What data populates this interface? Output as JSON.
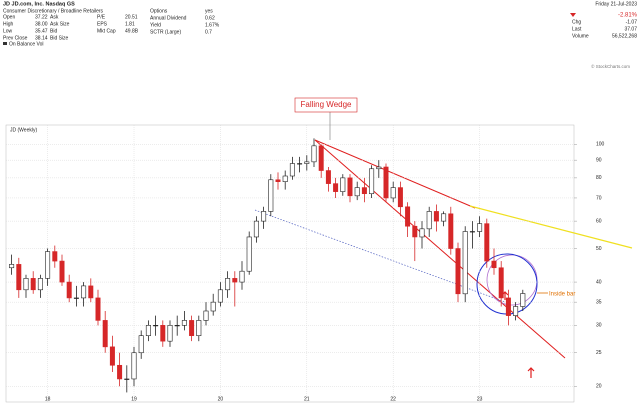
{
  "header": {
    "title": "JD JD.com, Inc. Nasdaq GS",
    "sector": "Consumer Discretionary / Broadline Retailers",
    "columns": [
      [
        [
          "Open",
          "37.22"
        ],
        [
          "High",
          "38.00"
        ],
        [
          "Low",
          "35.47"
        ],
        [
          "Prev Close",
          "38.14"
        ]
      ],
      [
        [
          "P/E",
          "20.51"
        ],
        [
          "EPS",
          "1.81"
        ],
        [
          "Mkt Cap",
          "49.8B"
        ]
      ],
      [
        [
          "Options",
          "yes"
        ],
        [
          "Annual Dividend",
          "0.62"
        ],
        [
          "Yield",
          "1.67%"
        ],
        [
          "SCTR (Large)",
          "0.7"
        ]
      ]
    ],
    "quote_labels": [
      "Ask",
      "Ask Size",
      "Bid",
      "Bid Size"
    ],
    "date": "Friday 21-Jul-2023",
    "change_pct": "-2.81%",
    "right": [
      [
        "Chg",
        "-1.07"
      ],
      [
        "Last",
        "37.07"
      ],
      [
        "Volume",
        "56,522,268"
      ]
    ],
    "legend": "On Balance Vol",
    "watermark": "© StockCharts.com"
  },
  "chart_data": {
    "type": "candlestick",
    "title": "JD (Weekly)",
    "log_scale": true,
    "grid": true,
    "up_color": "#222222",
    "down_color": "#d62728",
    "categories": [
      null,
      null,
      null,
      null,
      null,
      "18",
      null,
      null,
      null,
      null,
      null,
      null,
      null,
      null,
      null,
      null,
      null,
      "19",
      null,
      null,
      null,
      null,
      null,
      null,
      null,
      null,
      null,
      null,
      null,
      "20",
      null,
      null,
      null,
      null,
      null,
      null,
      null,
      null,
      null,
      null,
      null,
      "21",
      null,
      null,
      null,
      null,
      null,
      null,
      null,
      null,
      null,
      null,
      null,
      "22",
      null,
      null,
      null,
      null,
      null,
      null,
      null,
      null,
      null,
      null,
      null,
      "23",
      null,
      null,
      null,
      null,
      null,
      null
    ],
    "open": [
      44,
      45,
      38,
      41,
      38,
      41,
      49,
      46,
      40,
      36,
      36,
      39,
      36,
      31,
      26,
      23,
      21,
      21,
      25,
      28,
      30,
      30,
      27,
      30,
      30,
      31,
      28,
      31,
      33,
      35,
      38,
      41,
      40,
      43,
      54,
      60,
      64,
      79,
      78,
      81,
      88,
      88,
      89,
      99,
      84,
      77,
      73,
      80,
      71,
      75,
      72,
      85,
      86,
      70,
      75,
      66,
      58,
      54,
      57,
      64,
      60,
      63,
      50,
      37,
      56,
      56,
      59,
      46,
      44,
      36,
      32,
      34
    ],
    "high": [
      48,
      47,
      42,
      43,
      42,
      50,
      51,
      48,
      42,
      39,
      40,
      41,
      38,
      33,
      28,
      25,
      23,
      26,
      29,
      31,
      32,
      31,
      31,
      32,
      33,
      32,
      32,
      35,
      37,
      40,
      43,
      43,
      46,
      56,
      62,
      66,
      82,
      83,
      84,
      92,
      92,
      93,
      104,
      100,
      86,
      80,
      82,
      82,
      78,
      80,
      87,
      90,
      88,
      78,
      78,
      68,
      60,
      60,
      66,
      67,
      64,
      66,
      52,
      58,
      60,
      62,
      61,
      50,
      46,
      38,
      35,
      38
    ],
    "low": [
      42,
      36,
      36,
      37,
      36,
      39,
      44,
      39,
      35,
      34,
      34,
      35,
      30,
      25,
      22,
      20,
      19.2,
      20,
      24,
      27,
      28,
      26,
      26,
      28,
      29,
      27,
      27,
      30,
      32,
      34,
      36,
      34,
      38,
      42,
      52,
      57,
      62,
      74,
      74,
      79,
      83,
      84,
      86,
      80,
      73,
      70,
      71,
      68,
      69,
      68,
      70,
      80,
      68,
      68,
      62,
      54,
      46,
      50,
      54,
      56,
      58,
      48,
      35,
      35,
      50,
      54,
      44,
      42,
      34,
      30,
      31,
      33
    ],
    "close": [
      45,
      38,
      41,
      38,
      41,
      49,
      46,
      40,
      36,
      36,
      39,
      36,
      31,
      26,
      23,
      21,
      21,
      25,
      28,
      30,
      30,
      27,
      30,
      30,
      31,
      28,
      31,
      33,
      35,
      38,
      41,
      40,
      43,
      54,
      60,
      64,
      79,
      78,
      81,
      88,
      88,
      89,
      99,
      84,
      77,
      73,
      80,
      71,
      75,
      72,
      85,
      86,
      70,
      75,
      66,
      58,
      54,
      57,
      64,
      60,
      63,
      50,
      37,
      56,
      56,
      59,
      46,
      44,
      36,
      32,
      34,
      37.07
    ],
    "ylim": [
      19,
      110
    ],
    "yticks": [
      20,
      25,
      30,
      35,
      40,
      50,
      60,
      70,
      80,
      90,
      100
    ],
    "annotations": [
      "Falling Wedge",
      "Inside bar"
    ]
  }
}
